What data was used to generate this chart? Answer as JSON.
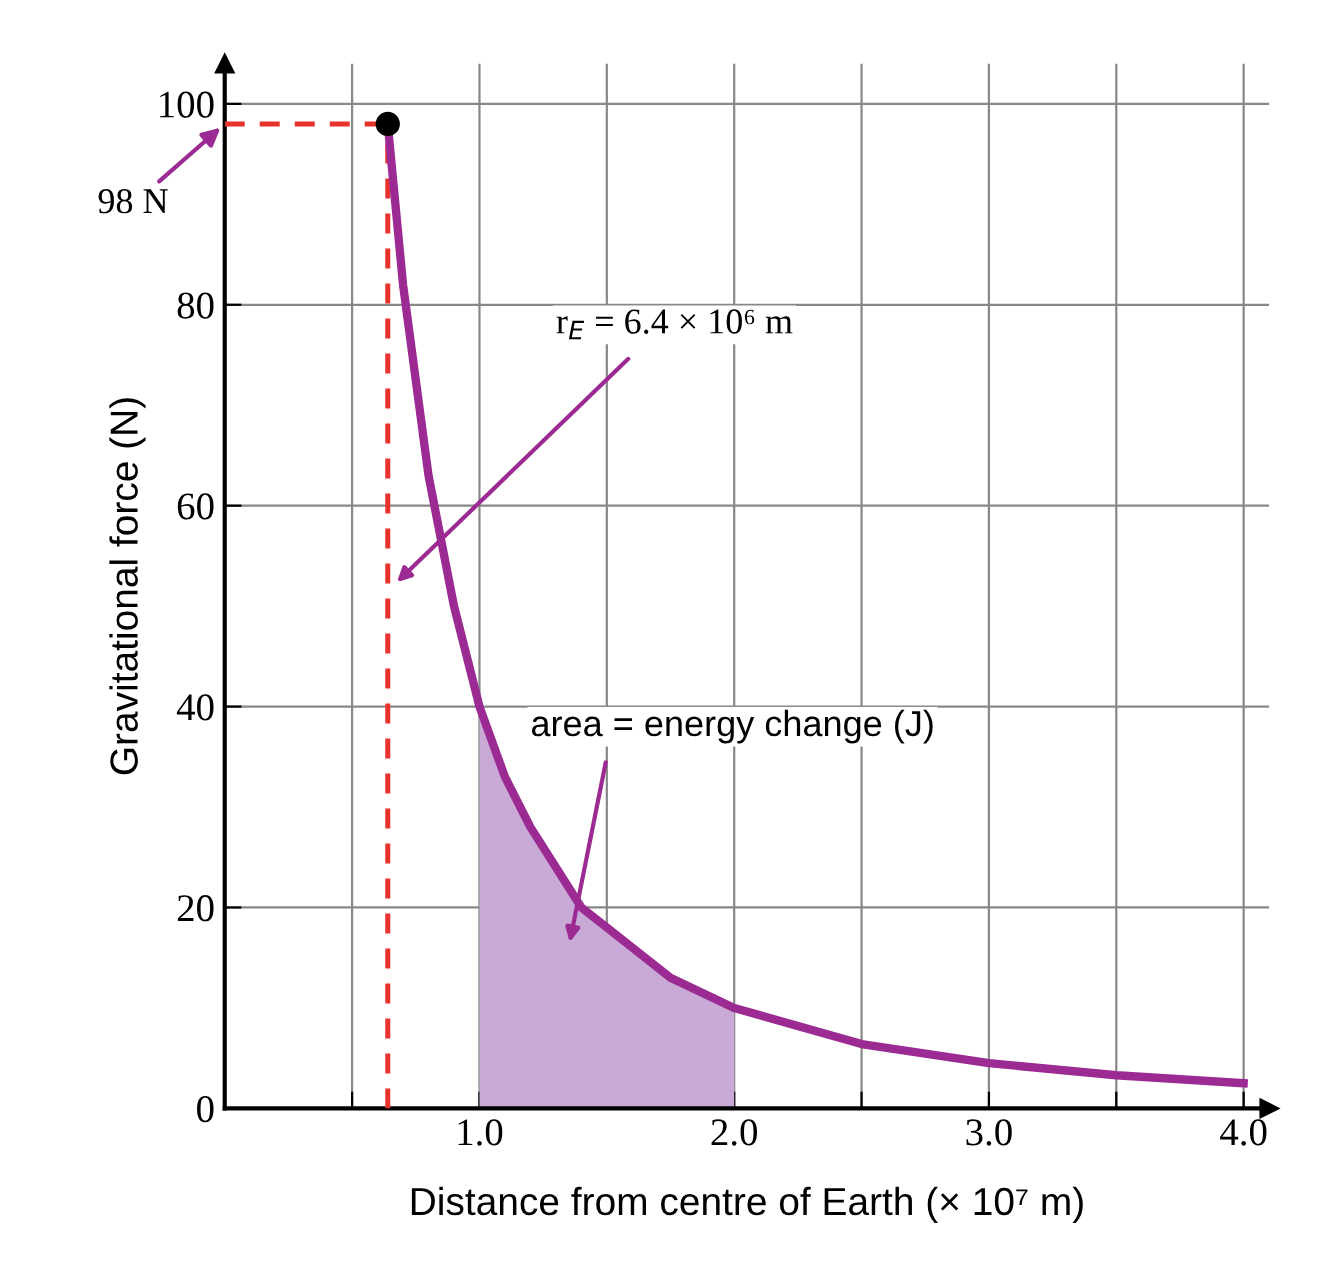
{
  "chart_data": {
    "type": "line",
    "xlabel": "Distance from centre of Earth (× 10⁷ m)",
    "ylabel": "Gravitational force (N)",
    "xlim": [
      0,
      4.1
    ],
    "ylim": [
      0,
      104
    ],
    "xticks": [
      {
        "value": 0.5,
        "label": null
      },
      {
        "value": 1.0,
        "label": "1.0"
      },
      {
        "value": 1.5,
        "label": null
      },
      {
        "value": 2.0,
        "label": "2.0"
      },
      {
        "value": 2.5,
        "label": null
      },
      {
        "value": 3.0,
        "label": "3.0"
      },
      {
        "value": 3.5,
        "label": null
      },
      {
        "value": 4.0,
        "label": "4.0"
      }
    ],
    "yticks": [
      0,
      20,
      40,
      60,
      80,
      100
    ],
    "grid": true,
    "marker": "none",
    "series": [
      {
        "color": "#9b2a93",
        "x": [
          0.64,
          0.7,
          0.8,
          0.9,
          1.0,
          1.1,
          1.2,
          1.3,
          1.4,
          1.5,
          1.75,
          2.0,
          2.5,
          3.0,
          3.5,
          4.0
        ],
        "values": [
          98,
          82,
          63,
          50,
          40,
          33,
          28,
          24,
          20,
          18,
          13,
          10,
          6.4,
          4.5,
          3.3,
          2.5
        ]
      },
      {
        "type": "area",
        "color": "#c9a9d6",
        "x": [
          1.0,
          1.1,
          1.2,
          1.3,
          1.4,
          1.5,
          1.75,
          2.0
        ],
        "values": [
          40,
          33,
          28,
          24,
          20,
          18,
          13,
          10
        ]
      },
      {
        "type": "line",
        "line_style": "dashed",
        "color": "#e8332a",
        "x": [
          0,
          0.64
        ],
        "values": [
          98,
          98
        ]
      },
      {
        "type": "line",
        "line_style": "dashed",
        "color": "#e8332a",
        "x": [
          0.64,
          0.64
        ],
        "values": [
          0,
          98
        ]
      },
      {
        "type": "scatter",
        "marker": "circle",
        "color": "#000000",
        "x": [
          0.64
        ],
        "values": [
          98
        ]
      }
    ],
    "annotations": [
      {
        "text": "98 N",
        "x": 0,
        "y": 98
      },
      "r$_{E}$ = 6.4 × 10⁶ m",
      "area = energy change (J)"
    ]
  }
}
